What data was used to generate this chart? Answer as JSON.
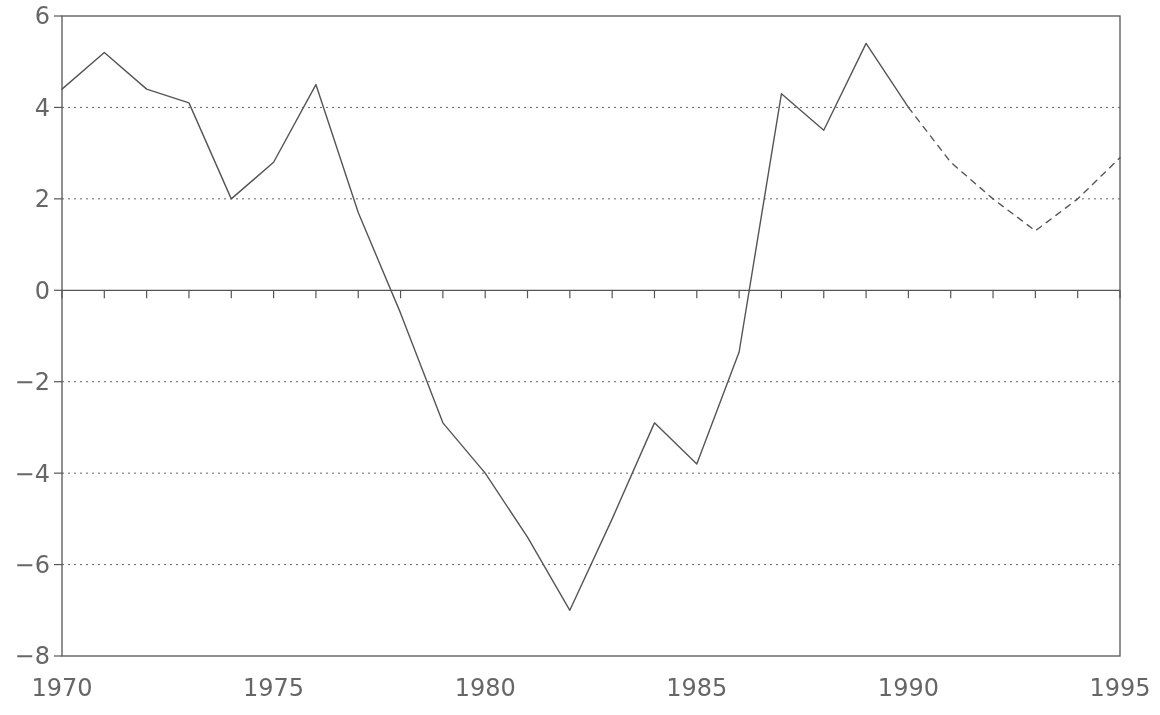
{
  "chart_data": {
    "type": "line",
    "series": [
      {
        "color": "#555555",
        "line_style": "solid",
        "x": [
          1970,
          1971,
          1972,
          1973,
          1974,
          1975,
          1976,
          1977,
          1978,
          1979,
          1980,
          1981,
          1982,
          1983,
          1984,
          1985,
          1986,
          1987,
          1988,
          1989,
          1990
        ],
        "values": [
          4.4,
          5.2,
          4.4,
          4.1,
          2.0,
          2.8,
          4.5,
          1.7,
          -0.5,
          -2.9,
          -4.0,
          -5.4,
          -7.0,
          -5.0,
          -2.9,
          -3.8,
          -1.35,
          4.3,
          3.5,
          5.4,
          4.0
        ]
      },
      {
        "color": "#555555",
        "line_style": "dashed",
        "x": [
          1990,
          1991,
          1992,
          1993,
          1994,
          1995
        ],
        "values": [
          4.0,
          2.8,
          2.0,
          1.3,
          2.0,
          2.9
        ]
      }
    ],
    "xlim": [
      1970,
      1995
    ],
    "xticks": [
      1970,
      1975,
      1980,
      1985,
      1990,
      1995
    ],
    "ylim": [
      -8,
      6
    ],
    "yticks": [
      -8,
      -6,
      -4,
      -2,
      0,
      2,
      4,
      6
    ],
    "grid": "y"
  }
}
